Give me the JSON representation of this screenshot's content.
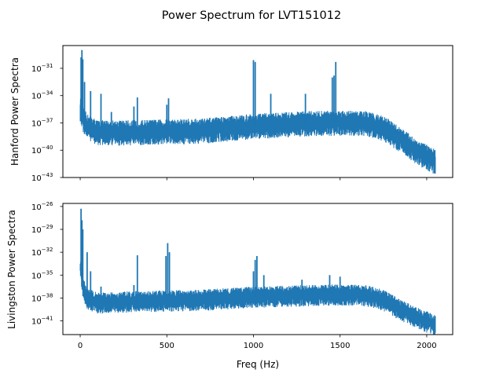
{
  "figure": {
    "title": "Power Spectrum for LVT151012"
  },
  "chart_data": [
    {
      "type": "line",
      "title": "",
      "xlabel": "",
      "ylabel": "Hanford Power Spectra",
      "xscale": "linear",
      "yscale": "log",
      "xlim": [
        -100,
        2150
      ],
      "ylim_exponent": [
        -43,
        -28.5
      ],
      "grid": false,
      "legend": "none",
      "x_ticks": [
        0,
        500,
        1000,
        1500,
        2000
      ],
      "x_tick_labels_visible": false,
      "y_ticks": [
        {
          "exponent": -31,
          "label": "10",
          "sup": "−31"
        },
        {
          "exponent": -34,
          "label": "10",
          "sup": "−34"
        },
        {
          "exponent": -37,
          "label": "10",
          "sup": "−37"
        },
        {
          "exponent": -40,
          "label": "10",
          "sup": "−40"
        },
        {
          "exponent": -43,
          "label": "10",
          "sup": "−43"
        }
      ],
      "series": [
        {
          "color": "#1f77b4",
          "baseline_log10": [
            [
              0,
              -35.5
            ],
            [
              15,
              -36.5
            ],
            [
              40,
              -37.3
            ],
            [
              100,
              -38.0
            ],
            [
              300,
              -38.0
            ],
            [
              700,
              -37.8
            ],
            [
              1000,
              -37.3
            ],
            [
              1300,
              -37.0
            ],
            [
              1500,
              -36.9
            ],
            [
              1650,
              -37.0
            ],
            [
              1750,
              -37.5
            ],
            [
              1850,
              -38.8
            ],
            [
              1950,
              -40.2
            ],
            [
              2050,
              -41.2
            ]
          ],
          "peaks_log10": [
            [
              5,
              -29.8
            ],
            [
              10,
              -29.0
            ],
            [
              15,
              -30.0
            ],
            [
              25,
              -32.5
            ],
            [
              60,
              -33.5
            ],
            [
              120,
              -33.8
            ],
            [
              180,
              -35.8
            ],
            [
              310,
              -35.2
            ],
            [
              330,
              -34.2
            ],
            [
              500,
              -35.0
            ],
            [
              510,
              -34.3
            ],
            [
              1000,
              -30.1
            ],
            [
              1010,
              -30.3
            ],
            [
              1100,
              -33.8
            ],
            [
              1300,
              -33.8
            ],
            [
              1455,
              -32.0
            ],
            [
              1465,
              -31.8
            ],
            [
              1475,
              -30.3
            ]
          ]
        }
      ]
    },
    {
      "type": "line",
      "title": "",
      "xlabel": "Freq (Hz)",
      "ylabel": "Livingston Power Spectra",
      "xscale": "linear",
      "yscale": "log",
      "xlim": [
        -100,
        2150
      ],
      "ylim_exponent": [
        -42.8,
        -25.6
      ],
      "grid": false,
      "legend": "none",
      "x_ticks": [
        0,
        500,
        1000,
        1500,
        2000
      ],
      "x_tick_labels_visible": true,
      "y_ticks": [
        {
          "exponent": -26,
          "label": "10",
          "sup": "−26"
        },
        {
          "exponent": -29,
          "label": "10",
          "sup": "−29"
        },
        {
          "exponent": -32,
          "label": "10",
          "sup": "−32"
        },
        {
          "exponent": -35,
          "label": "10",
          "sup": "−35"
        },
        {
          "exponent": -38,
          "label": "10",
          "sup": "−38"
        },
        {
          "exponent": -41,
          "label": "10",
          "sup": "−41"
        }
      ],
      "series": [
        {
          "color": "#1f77b4",
          "baseline_log10": [
            [
              0,
              -34.0
            ],
            [
              15,
              -36.5
            ],
            [
              40,
              -38.0
            ],
            [
              100,
              -38.6
            ],
            [
              300,
              -38.4
            ],
            [
              700,
              -38.2
            ],
            [
              1000,
              -37.8
            ],
            [
              1300,
              -37.6
            ],
            [
              1500,
              -37.5
            ],
            [
              1650,
              -37.6
            ],
            [
              1750,
              -38.2
            ],
            [
              1850,
              -39.5
            ],
            [
              1950,
              -40.6
            ],
            [
              2050,
              -41.5
            ]
          ],
          "peaks_log10": [
            [
              5,
              -26.3
            ],
            [
              10,
              -27.8
            ],
            [
              15,
              -29.0
            ],
            [
              40,
              -32.0
            ],
            [
              60,
              -34.5
            ],
            [
              120,
              -36.5
            ],
            [
              180,
              -37.5
            ],
            [
              310,
              -36.3
            ],
            [
              330,
              -32.4
            ],
            [
              495,
              -32.5
            ],
            [
              505,
              -30.8
            ],
            [
              515,
              -32.0
            ],
            [
              600,
              -37.2
            ],
            [
              1000,
              -34.5
            ],
            [
              1010,
              -33.0
            ],
            [
              1020,
              -32.5
            ],
            [
              1060,
              -35.0
            ],
            [
              1280,
              -35.6
            ],
            [
              1440,
              -35.0
            ],
            [
              1460,
              -36.5
            ],
            [
              1500,
              -35.2
            ],
            [
              1520,
              -36.4
            ],
            [
              1630,
              -36.6
            ]
          ]
        }
      ]
    }
  ]
}
